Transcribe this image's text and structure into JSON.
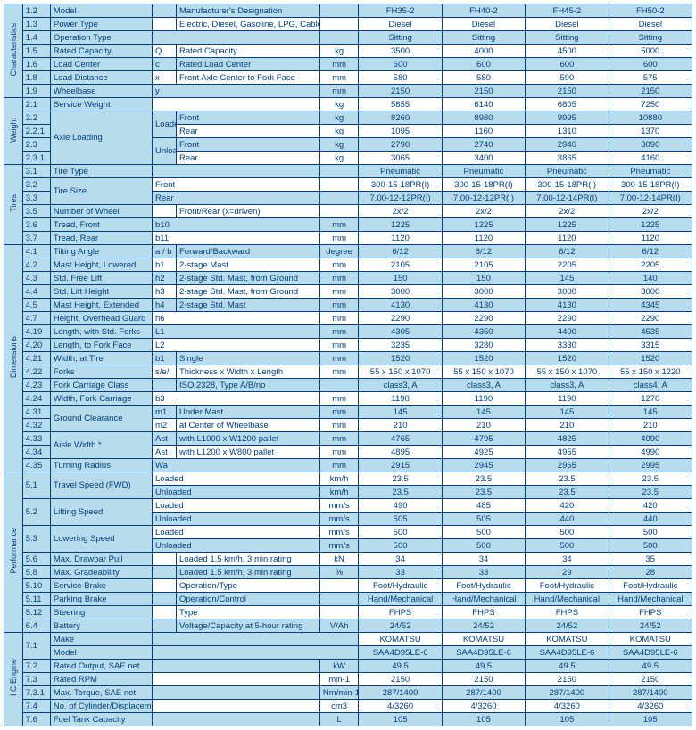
{
  "models": [
    "FH35-2",
    "FH40-2",
    "FH45-2",
    "FH50-2"
  ],
  "groups": [
    {
      "title": "Characteristics",
      "rows": [
        {
          "n": "1.2",
          "a": "Model",
          "b": "",
          "c": "Manufacturer's Designation",
          "u": "",
          "blue": true,
          "v": [
            "FH35-2",
            "FH40-2",
            "FH45-2",
            "FH50-2"
          ]
        },
        {
          "n": "1.3",
          "a": "Power Type",
          "b": "",
          "c": "Electric, Diesel, Gasoline, LPG, Cable",
          "u": "",
          "v": [
            "Diesel",
            "Diesel",
            "Diesel",
            "Diesel"
          ]
        },
        {
          "n": "1.4",
          "a": "Operation Type",
          "b": "",
          "c": "",
          "u": "",
          "blue": true,
          "v": [
            "Sitting",
            "Sitting",
            "Sitting",
            "Sitting"
          ]
        },
        {
          "n": "1.5",
          "a": "Rated Capacity",
          "b": "Q",
          "c": "Rated Capacity",
          "u": "kg",
          "v": [
            "3500",
            "4000",
            "4500",
            "5000"
          ]
        },
        {
          "n": "1.6",
          "a": "Load Center",
          "b": "c",
          "c": "Rated Load Center",
          "u": "mm",
          "blue": true,
          "v": [
            "600",
            "600",
            "600",
            "600"
          ]
        },
        {
          "n": "1.8",
          "a": "Load Distance",
          "b": "x",
          "c": "Front Axle Center to Fork Face",
          "u": "mm",
          "v": [
            "580",
            "580",
            "590",
            "575"
          ]
        },
        {
          "n": "1.9",
          "a": "Wheelbase",
          "b": "y",
          "c": "",
          "u": "mm",
          "blue": true,
          "v": [
            "2150",
            "2150",
            "2150",
            "2150"
          ]
        }
      ]
    },
    {
      "title": "Weight",
      "rows": [
        {
          "n": "2.1",
          "a": "Service Weight",
          "b": "",
          "c": "",
          "u": "kg",
          "v": [
            "5855",
            "6140",
            "6805",
            "7250"
          ]
        },
        {
          "n": "2.2",
          "aSpan": 4,
          "aLabel": "Axle Loading",
          "bSpan": 2,
          "b": "Loaded",
          "c": "Front",
          "u": "kg",
          "blue": true,
          "v": [
            "8260",
            "8980",
            "9995",
            "10880"
          ]
        },
        {
          "n": "2.2.1",
          "c": "Rear",
          "u": "kg",
          "v": [
            "1095",
            "1160",
            "1310",
            "1370"
          ]
        },
        {
          "n": "2.3",
          "bSpan": 2,
          "b": "Unloaded",
          "c": "Front",
          "u": "kg",
          "blue": true,
          "v": [
            "2790",
            "2740",
            "2940",
            "3090"
          ]
        },
        {
          "n": "2.3.1",
          "c": "Rear",
          "u": "kg",
          "v": [
            "3065",
            "3400",
            "3865",
            "4160"
          ]
        }
      ]
    },
    {
      "title": "Tires",
      "rows": [
        {
          "n": "3.1",
          "a": "Tire Type",
          "b": "",
          "c": "",
          "u": "",
          "blue": true,
          "v": [
            "Pneumatic",
            "Pneumatic",
            "Pneumatic",
            "Pneumatic"
          ]
        },
        {
          "n": "3.2",
          "aSpan": 2,
          "aLabel": "Tire Size",
          "b": "Front",
          "c": "",
          "u": "",
          "v": [
            "300-15-18PR(I)",
            "300-15-18PR(I)",
            "300-15-18PR(I)",
            "300-15-18PR(I)"
          ]
        },
        {
          "n": "3.3",
          "b": "Rear",
          "c": "",
          "u": "",
          "blue": true,
          "v": [
            "7.00-12-12PR(I)",
            "7.00-12-12PR(I)",
            "7.00-12-14PR(I)",
            "7.00-12-14PR(I)"
          ]
        },
        {
          "n": "3.5",
          "a": "Number of Wheel",
          "b": "",
          "c": "Front/Rear (x=driven)",
          "u": "",
          "v": [
            "2x/2",
            "2x/2",
            "2x/2",
            "2x/2"
          ]
        },
        {
          "n": "3.6",
          "a": "Tread, Front",
          "b": "b10",
          "c": "",
          "u": "mm",
          "blue": true,
          "v": [
            "1225",
            "1225",
            "1225",
            "1225"
          ]
        },
        {
          "n": "3.7",
          "a": "Tread, Rear",
          "b": "b11",
          "c": "",
          "u": "mm",
          "v": [
            "1120",
            "1120",
            "1120",
            "1120"
          ]
        }
      ]
    },
    {
      "title": "Dimensions",
      "rows": [
        {
          "n": "4.1",
          "a": "Tilting Angle",
          "b": "a / b",
          "c": "Forward/Backward",
          "u": "degree",
          "blue": true,
          "v": [
            "6/12",
            "6/12",
            "6/12",
            "6/12"
          ]
        },
        {
          "n": "4.2",
          "a": "Mast Height, Lowered",
          "b": "h1",
          "c": "2-stage Mast",
          "u": "mm",
          "v": [
            "2105",
            "2105",
            "2205",
            "2205"
          ]
        },
        {
          "n": "4.3",
          "a": "Std. Free Lift",
          "b": "h2",
          "c": "2-stage Std. Mast, from Ground",
          "u": "mm",
          "blue": true,
          "v": [
            "150",
            "150",
            "145",
            "140"
          ]
        },
        {
          "n": "4.4",
          "a": "Std. Lift Height",
          "b": "h3",
          "c": "2-stage Std. Mast, from Ground",
          "u": "mm",
          "v": [
            "3000",
            "3000",
            "3000",
            "3000"
          ]
        },
        {
          "n": "4.5",
          "a": "Mast Height, Extended",
          "b": "h4",
          "c": "2-stage Std. Mast",
          "u": "mm",
          "blue": true,
          "v": [
            "4130",
            "4130",
            "4130",
            "4345"
          ]
        },
        {
          "n": "4.7",
          "a": "Height, Overhead Guard",
          "b": "h6",
          "c": "",
          "u": "mm",
          "v": [
            "2290",
            "2290",
            "2290",
            "2290"
          ]
        },
        {
          "n": "4.19",
          "a": "Length, with Std. Forks",
          "b": "L1",
          "c": "",
          "u": "mm",
          "blue": true,
          "v": [
            "4305",
            "4350",
            "4400",
            "4535"
          ]
        },
        {
          "n": "4.20",
          "a": "Length, to Fork Face",
          "b": "L2",
          "c": "",
          "u": "mm",
          "v": [
            "3235",
            "3280",
            "3330",
            "3315"
          ]
        },
        {
          "n": "4.21",
          "a": "Width, at Tire",
          "b": "b1",
          "c": "Single",
          "u": "mm",
          "blue": true,
          "v": [
            "1520",
            "1520",
            "1520",
            "1520"
          ]
        },
        {
          "n": "4.22",
          "a": "Forks",
          "b": "s/e/l",
          "c": "Thickness x Width x Length",
          "u": "mm",
          "v": [
            "55 x 150 x 1070",
            "55 x 150 x 1070",
            "55 x 150 x 1070",
            "55 x 150 x 1220"
          ]
        },
        {
          "n": "4.23",
          "a": "Fork Carriage Class",
          "b": "",
          "c": "ISO 2328, Type A/B/no",
          "u": "",
          "blue": true,
          "v": [
            "class3, A",
            "class3, A",
            "class3, A",
            "class4, A"
          ]
        },
        {
          "n": "4.24",
          "a": "Width, Fork Carriage",
          "b": "b3",
          "c": "",
          "u": "mm",
          "v": [
            "1190",
            "1190",
            "1190",
            "1270"
          ]
        },
        {
          "n": "4.31",
          "aSpan": 2,
          "aLabel": "Ground Clearance",
          "b": "m1",
          "c": "Under Mast",
          "u": "mm",
          "blue": true,
          "v": [
            "145",
            "145",
            "145",
            "145"
          ]
        },
        {
          "n": "4.32",
          "b": "m2",
          "c": "at Center of Wheelbase",
          "u": "mm",
          "v": [
            "210",
            "210",
            "210",
            "210"
          ]
        },
        {
          "n": "4.33",
          "aSpan": 2,
          "aLabel": "Aisle Width *",
          "b": "Ast",
          "c": "with L1000 x W1200 pallet",
          "u": "mm",
          "blue": true,
          "v": [
            "4765",
            "4795",
            "4825",
            "4990"
          ]
        },
        {
          "n": "4.34",
          "b": "Ast",
          "c": "with L1200 x W800 pallet",
          "u": "mm",
          "v": [
            "4895",
            "4925",
            "4955",
            "4990"
          ]
        },
        {
          "n": "4.35",
          "a": "Turning Radius",
          "b": "Wa",
          "c": "",
          "u": "mm",
          "blue": true,
          "v": [
            "2915",
            "2945",
            "2965",
            "2995"
          ]
        }
      ]
    },
    {
      "title": "Performance",
      "rows": [
        {
          "n": "5.1",
          "nSpan": 2,
          "aSpan": 2,
          "aLabel": "Travel Speed (FWD)",
          "b": "Loaded",
          "c": "",
          "u": "km/h",
          "v": [
            "23.5",
            "23.5",
            "23.5",
            "23.5"
          ]
        },
        {
          "b": "Unloaded",
          "c": "",
          "u": "km/h",
          "blue": true,
          "v": [
            "23.5",
            "23.5",
            "23.5",
            "23.5"
          ]
        },
        {
          "n": "5.2",
          "nSpan": 2,
          "aSpan": 2,
          "aLabel": "Lifting Speed",
          "b": "Loaded",
          "c": "",
          "u": "mm/s",
          "v": [
            "490",
            "485",
            "420",
            "420"
          ]
        },
        {
          "b": "Unloaded",
          "c": "",
          "u": "mm/s",
          "blue": true,
          "v": [
            "505",
            "505",
            "440",
            "440"
          ]
        },
        {
          "n": "5.3",
          "nSpan": 2,
          "aSpan": 2,
          "aLabel": "Lowering Speed",
          "b": "Loaded",
          "c": "",
          "u": "mm/s",
          "v": [
            "500",
            "500",
            "500",
            "500"
          ]
        },
        {
          "b": "Unloaded",
          "c": "",
          "u": "mm/s",
          "blue": true,
          "v": [
            "500",
            "500",
            "500",
            "500"
          ]
        },
        {
          "n": "5.6",
          "a": "Max. Drawbar Pull",
          "b": "",
          "c": "Loaded 1.5 km/h, 3 min rating",
          "u": "kN",
          "v": [
            "34",
            "34",
            "34",
            "35"
          ]
        },
        {
          "n": "5.8",
          "a": "Max. Gradeability",
          "b": "",
          "c": "Loaded 1.5 km/h, 3 min rating",
          "u": "%",
          "blue": true,
          "v": [
            "33",
            "33",
            "29",
            "28"
          ]
        },
        {
          "n": "5.10",
          "a": "Service Brake",
          "b": "",
          "c": "Operation/Type",
          "u": "",
          "v": [
            "Foot/Hydraulic",
            "Foot/Hydraulic",
            "Foot/Hydraulic",
            "Foot/Hydraulic"
          ]
        },
        {
          "n": "5.11",
          "a": "Parking Brake",
          "b": "",
          "c": "Operation/Control",
          "u": "",
          "blue": true,
          "v": [
            "Hand/Mechanical",
            "Hand/Mechanical",
            "Hand/Mechanical",
            "Hand/Mechanical"
          ]
        },
        {
          "n": "5.12",
          "a": "Steering",
          "b": "",
          "c": "Type",
          "u": "",
          "v": [
            "FHPS",
            "FHPS",
            "FHPS",
            "FHPS"
          ]
        },
        {
          "n": "6.4",
          "a": "Battery",
          "b": "",
          "c": "Voltage/Capacity at 5-hour rating",
          "u": "V/Ah",
          "blue": true,
          "v": [
            "24/52",
            "24/52",
            "24/52",
            "24/52"
          ]
        }
      ]
    },
    {
      "title": "I.C Engine",
      "rows": [
        {
          "n": "7.1",
          "nSpan": 2,
          "aSpan": 2,
          "aLabel": "Make\nModel",
          "b": "",
          "c": "",
          "u": "",
          "special": "makemodel",
          "v": [
            "KOMATSU",
            "KOMATSU",
            "KOMATSU",
            "KOMATSU"
          ],
          "v2": [
            "SAA4D95LE-6",
            "SAA4D95LE-6",
            "SAA4D95LE-6",
            "SAA4D95LE-6"
          ]
        },
        {
          "n": "7.2",
          "a": "Rated Output, SAE net",
          "b": "",
          "c": "",
          "u": "kW",
          "blue": true,
          "v": [
            "49.5",
            "49.5",
            "49.5",
            "49.5"
          ]
        },
        {
          "n": "7.3",
          "a": "Rated RPM",
          "b": "",
          "c": "",
          "u": "min-1",
          "v": [
            "2150",
            "2150",
            "2150",
            "2150"
          ]
        },
        {
          "n": "7.3.1",
          "a": "Max. Torque, SAE net",
          "b": "",
          "c": "",
          "u": "Nm/min-1",
          "blue": true,
          "v": [
            "287/1400",
            "287/1400",
            "287/1400",
            "287/1400"
          ]
        },
        {
          "n": "7.4",
          "a": "No. of Cylinder/Displacement",
          "b": "",
          "c": "",
          "u": "cm3",
          "v": [
            "4/3260",
            "4/3260",
            "4/3260",
            "4/3260"
          ]
        },
        {
          "n": "7.6",
          "a": "Fuel Tank Capacity",
          "b": "",
          "c": "",
          "u": "L",
          "blue": true,
          "v": [
            "105",
            "105",
            "105",
            "105"
          ]
        }
      ]
    }
  ]
}
